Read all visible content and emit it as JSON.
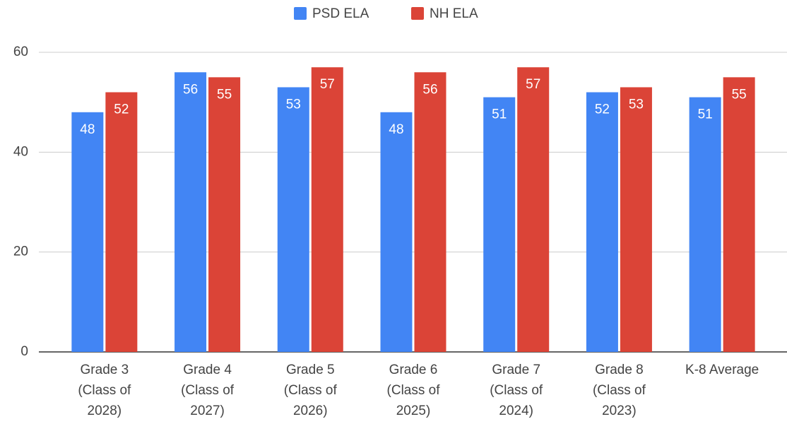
{
  "chart_data": {
    "type": "bar",
    "categories": [
      "Grade 3 (Class of 2028)",
      "Grade 4 (Class of 2027)",
      "Grade 5 (Class of 2026)",
      "Grade 6 (Class of 2025)",
      "Grade 7 (Class of 2024)",
      "Grade 8 (Class of 2023)",
      "K-8 Average"
    ],
    "series": [
      {
        "name": "PSD ELA",
        "color": "#4285f4",
        "values": [
          48,
          56,
          53,
          48,
          51,
          52,
          51
        ]
      },
      {
        "name": "NH ELA",
        "color": "#db4437",
        "values": [
          52,
          55,
          57,
          56,
          57,
          53,
          55
        ]
      }
    ],
    "ylim": [
      0,
      60
    ],
    "yticks": [
      0,
      20,
      40,
      60
    ],
    "grid": true,
    "legend": "top"
  }
}
